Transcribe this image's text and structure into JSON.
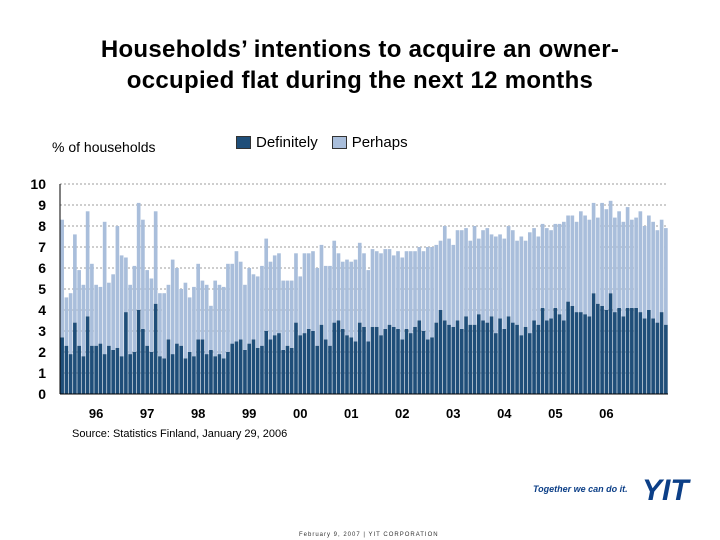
{
  "page": {
    "title_line1": "Households’ intentions to acquire an owner-",
    "title_line2": "occupied flat during the next 12 months",
    "ylabel": "% of households",
    "source": "Source: Statistics Finland, January 29, 2006",
    "footer": "February 9, 2007   |   YIT CORPORATION",
    "slogan": "Together we can do it.",
    "logo_text": "YIT"
  },
  "colors": {
    "definitely": "#1f4e79",
    "perhaps": "#a9bedb",
    "grid": "#7f7f7f",
    "brand": "#0c3f87"
  },
  "chart_data": {
    "type": "bar",
    "stacked": true,
    "title": "Households’ intentions to acquire an owner-occupied flat during the next 12 months",
    "ylabel": "% of households",
    "xlabel": "",
    "ylim": [
      0,
      10
    ],
    "yticks": [
      0,
      1,
      2,
      3,
      4,
      5,
      6,
      7,
      8,
      9,
      10
    ],
    "x_tick_labels": [
      "96",
      "97",
      "98",
      "99",
      "00",
      "01",
      "02",
      "03",
      "04",
      "05",
      "06"
    ],
    "first_period": "1995-10",
    "last_period": "2006-01",
    "grid": "horizontal dashed",
    "legend": "top",
    "series": [
      {
        "name": "Definitely",
        "values": [
          2.7,
          2.3,
          1.9,
          3.4,
          2.3,
          1.8,
          3.7,
          2.3,
          2.3,
          2.4,
          1.9,
          2.3,
          2.1,
          2.2,
          1.8,
          3.9,
          1.9,
          2.0,
          4.0,
          3.1,
          2.3,
          2.0,
          4.3,
          1.8,
          1.7,
          2.6,
          1.9,
          2.4,
          2.3,
          1.7,
          2.0,
          1.8,
          2.6,
          2.6,
          1.9,
          2.1,
          1.8,
          1.9,
          1.7,
          2.0,
          2.4,
          2.5,
          2.6,
          2.1,
          2.4,
          2.6,
          2.2,
          2.3,
          3.0,
          2.6,
          2.8,
          2.9,
          2.1,
          2.3,
          2.2,
          3.4,
          2.8,
          2.9,
          3.1,
          3.0,
          2.3,
          3.3,
          2.6,
          2.3,
          3.4,
          3.5,
          3.1,
          2.8,
          2.7,
          2.5,
          3.4,
          3.2,
          2.5,
          3.2,
          3.2,
          2.8,
          3.1,
          3.3,
          3.2,
          3.1,
          2.6,
          3.1,
          2.9,
          3.2,
          3.5,
          3.0,
          2.6,
          2.7,
          3.4,
          4.0,
          3.5,
          3.3,
          3.2,
          3.5,
          3.1,
          3.7,
          3.3,
          3.3,
          3.8,
          3.5,
          3.4,
          3.7,
          2.9,
          3.6,
          3.1,
          3.7,
          3.4,
          3.3,
          2.8,
          3.2,
          2.9,
          3.5,
          3.3,
          4.1,
          3.5,
          3.6,
          4.1,
          3.8,
          3.5,
          4.4,
          4.2,
          3.9,
          3.9,
          3.8,
          3.7,
          4.8,
          4.3,
          4.2,
          4.0,
          4.8,
          3.9,
          4.1,
          3.7,
          4.1,
          4.1,
          4.1,
          3.9,
          3.6,
          4.0,
          3.6,
          3.4,
          3.9,
          3.3
        ],
        "value_precision": "estimated from bar heights against the 0–10 axis"
      },
      {
        "name": "Perhaps",
        "values": [
          5.6,
          2.3,
          2.9,
          4.2,
          3.6,
          3.4,
          5.0,
          3.9,
          2.9,
          2.7,
          6.3,
          3.0,
          3.6,
          5.8,
          4.8,
          2.6,
          3.3,
          4.1,
          5.1,
          5.2,
          3.6,
          3.5,
          4.4,
          3.0,
          3.1,
          2.6,
          4.5,
          3.6,
          2.7,
          3.6,
          2.6,
          3.3,
          3.6,
          2.8,
          3.3,
          2.1,
          3.6,
          3.3,
          3.4,
          4.2,
          3.8,
          4.3,
          3.7,
          3.1,
          3.6,
          3.1,
          3.4,
          3.8,
          4.4,
          3.7,
          3.8,
          3.8,
          3.3,
          3.1,
          3.2,
          3.3,
          2.8,
          3.8,
          3.6,
          3.8,
          3.7,
          3.8,
          3.5,
          3.8,
          3.9,
          3.2,
          3.2,
          3.6,
          3.6,
          3.9,
          3.8,
          3.5,
          3.4,
          3.7,
          3.6,
          3.9,
          3.8,
          3.6,
          3.4,
          3.7,
          3.9,
          3.7,
          3.9,
          3.6,
          3.5,
          3.8,
          4.4,
          4.3,
          3.7,
          3.3,
          4.5,
          4.1,
          3.9,
          4.3,
          4.7,
          4.2,
          4.0,
          4.7,
          3.6,
          4.3,
          4.5,
          3.9,
          4.6,
          4.0,
          4.3,
          4.3,
          4.4,
          4.0,
          4.7,
          4.1,
          4.8,
          4.4,
          4.2,
          4.0,
          4.4,
          4.2,
          4.0,
          4.3,
          4.7,
          4.1,
          4.3,
          4.3,
          4.8,
          4.7,
          4.6,
          4.3,
          4.1,
          4.9,
          4.8,
          4.4,
          4.5,
          4.6,
          4.5,
          4.8,
          4.2,
          4.3,
          4.8,
          4.4,
          4.5,
          4.6,
          4.4,
          4.4,
          4.6
        ],
        "value_precision": "estimated from bar heights against the 0–10 axis"
      }
    ]
  }
}
